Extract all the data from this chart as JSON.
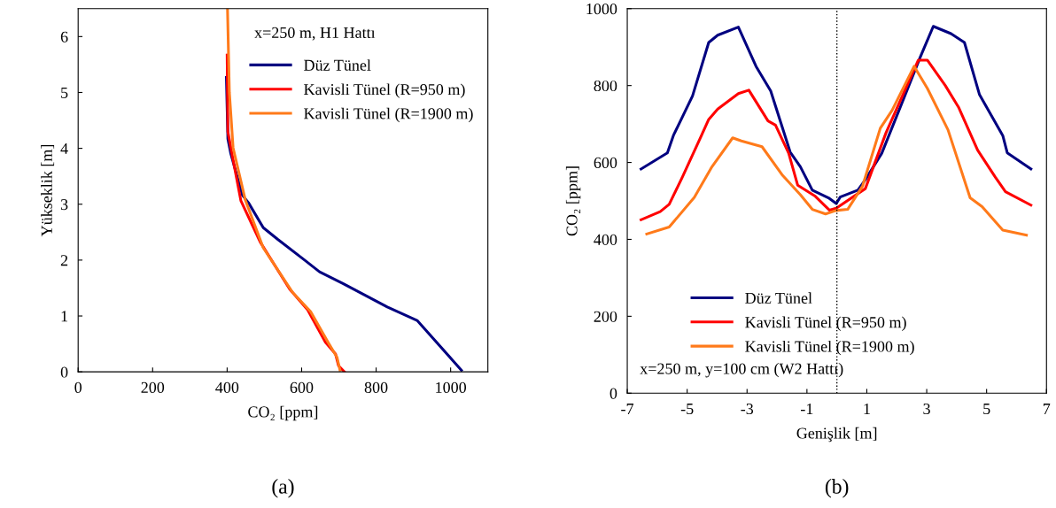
{
  "chart_data": [
    {
      "type": "line",
      "xlabel": "CO₂ [ppm]",
      "ylabel": "Yükseklik [m]",
      "xlim": [
        0,
        1100
      ],
      "xticks": [
        0,
        200,
        400,
        600,
        800,
        1000
      ],
      "ylim": [
        0,
        6.5
      ],
      "yticks": [
        0,
        1,
        2,
        3,
        4,
        5,
        6
      ],
      "grid": false,
      "legend": "top right",
      "marker": "none",
      "line_style": "solid",
      "annotations": [
        "x=250 m, H1 Hattı",
        "(a)"
      ],
      "series": [
        {
          "name": "Düz Tünel",
          "color": "#000080",
          "x": [
            398,
            402,
            410,
            441,
            457,
            497,
            536,
            608,
            648,
            711,
            830,
            910,
            1005,
            1029
          ],
          "values": [
            5.27,
            4.17,
            3.9,
            3.16,
            3.03,
            2.58,
            2.37,
            2.0,
            1.79,
            1.58,
            1.16,
            0.92,
            0.21,
            0.03
          ]
        },
        {
          "name": "Kavisli Tünel (R=950 m)",
          "color": "#ff0000",
          "x": [
            400,
            402,
            413,
            437,
            489,
            568,
            616,
            664,
            691,
            699,
            715
          ],
          "values": [
            5.67,
            4.3,
            3.9,
            3.06,
            2.32,
            1.48,
            1.11,
            0.53,
            0.32,
            0.11,
            0.0
          ]
        },
        {
          "name": "Kavisli Tünel (R=1900 m)",
          "color": "#ff7a1a",
          "x": [
            401,
            406,
            416,
            449,
            497,
            576,
            624,
            671,
            695,
            703
          ],
          "values": [
            6.49,
            5.0,
            4.01,
            3.07,
            2.22,
            1.42,
            1.08,
            0.53,
            0.26,
            0.03
          ]
        }
      ]
    },
    {
      "type": "line",
      "xlabel": "Genişlik [m]",
      "ylabel": "CO₂ [ppm]",
      "xlim": [
        -7,
        7
      ],
      "xticks": [
        -7,
        -5,
        -3,
        -1,
        1,
        3,
        5,
        7
      ],
      "ylim": [
        0,
        1000
      ],
      "yticks": [
        0,
        200,
        400,
        600,
        800,
        1000
      ],
      "grid": false,
      "legend": "center left",
      "marker": "none",
      "line_style": "solid",
      "ref_lines": [
        {
          "axis": "x",
          "value": 0,
          "color": "#000000",
          "line_style": "dotted"
        }
      ],
      "annotations": [
        "x=250 m, y=100 cm (W2 Hattı)",
        "(b)"
      ],
      "series": [
        {
          "name": "Düz Tünel",
          "color": "#000080",
          "x": [
            -6.54,
            -5.66,
            -5.46,
            -4.82,
            -4.28,
            -3.98,
            -3.29,
            -2.7,
            -2.21,
            -1.56,
            -1.22,
            -0.82,
            -0.28,
            -0.02,
            0.11,
            0.7,
            0.95,
            1.5,
            2.78,
            3.22,
            3.81,
            4.26,
            4.76,
            5.54,
            5.69,
            6.48
          ],
          "values": [
            583,
            625,
            670,
            773,
            912,
            931,
            952,
            850,
            786,
            627,
            589,
            528,
            508,
            493,
            510,
            528,
            555,
            624,
            873,
            954,
            935,
            912,
            777,
            670,
            625,
            583
          ]
        },
        {
          "name": "Kavisli Tünel (R=950 m)",
          "color": "#ff0000",
          "x": [
            -6.54,
            -5.9,
            -5.6,
            -5.16,
            -4.57,
            -4.28,
            -3.98,
            -3.29,
            -2.94,
            -2.3,
            -2.05,
            -1.61,
            -1.31,
            -0.72,
            -0.25,
            -0.02,
            0.95,
            1.64,
            2.72,
            3.02,
            3.62,
            4.06,
            4.7,
            5.29,
            5.63,
            6.48
          ],
          "values": [
            451,
            472,
            491,
            562,
            662,
            712,
            739,
            779,
            788,
            708,
            697,
            624,
            541,
            512,
            476,
            481,
            532,
            677,
            866,
            866,
            800,
            744,
            632,
            562,
            524,
            489
          ]
        },
        {
          "name": "Kavisli Tünel (R=1900 m)",
          "color": "#ff7a1a",
          "x": [
            -6.35,
            -5.6,
            -4.76,
            -4.17,
            -3.48,
            -3.19,
            -2.5,
            -1.81,
            -1.22,
            -0.82,
            -0.38,
            -0.03,
            0.36,
            0.86,
            1.45,
            1.84,
            2.58,
            3.02,
            3.71,
            4.45,
            4.85,
            5.54,
            6.33
          ],
          "values": [
            414,
            432,
            509,
            589,
            664,
            656,
            641,
            566,
            516,
            478,
            466,
            475,
            478,
            539,
            689,
            735,
            850,
            793,
            685,
            508,
            485,
            424,
            411
          ]
        }
      ]
    }
  ]
}
